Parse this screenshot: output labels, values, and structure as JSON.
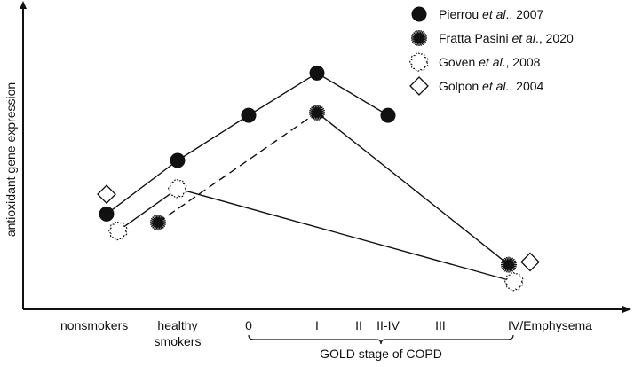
{
  "chart_data": {
    "type": "scatter",
    "ylabel": "antioxidant gene expression",
    "xlabel": "",
    "y_ticks_shown": false,
    "grid": false,
    "legend_position": "top-right",
    "categories": [
      "nonsmokers",
      "healthy smokers",
      "0",
      "I",
      "II",
      "II-IV",
      "III",
      "IV/Emphysema"
    ],
    "bracket": {
      "label": "GOLD stage of COPD",
      "from": "0",
      "to": "IV/Emphysema"
    },
    "ylim": [
      0,
      100
    ],
    "series": [
      {
        "name_prefix": "Pierrou ",
        "name_italic": "et al",
        "name_suffix": "., 2007",
        "marker": "filled-circle",
        "line": "solid",
        "points": [
          {
            "category": "nonsmokers",
            "y": 31
          },
          {
            "category": "healthy smokers",
            "y": 50
          },
          {
            "category": "0",
            "y": 66
          },
          {
            "category": "I",
            "y": 81
          },
          {
            "category": "II-IV",
            "y": 66
          }
        ]
      },
      {
        "name_prefix": "Fratta Pasini ",
        "name_italic": "et al",
        "name_suffix": "., 2020",
        "marker": "starburst",
        "line": "dashed-then-solid",
        "points": [
          {
            "category": "healthy smokers",
            "y": 28
          },
          {
            "category": "I",
            "y": 67
          },
          {
            "category": "IV/Emphysema",
            "y": 13
          }
        ]
      },
      {
        "name_prefix": "Goven ",
        "name_italic": "et al",
        "name_suffix": "., 2008",
        "marker": "cloud",
        "line": "solid",
        "points": [
          {
            "category": "nonsmokers",
            "y": 25
          },
          {
            "category": "healthy smokers",
            "y": 40
          },
          {
            "category": "IV/Emphysema",
            "y": 7
          }
        ]
      },
      {
        "name_prefix": "Golpon ",
        "name_italic": "et al",
        "name_suffix": "., 2004",
        "marker": "open-diamond",
        "line": "none",
        "points": [
          {
            "category": "nonsmokers",
            "y": 38
          },
          {
            "category": "IV/Emphysema",
            "y": 14
          }
        ]
      }
    ]
  }
}
